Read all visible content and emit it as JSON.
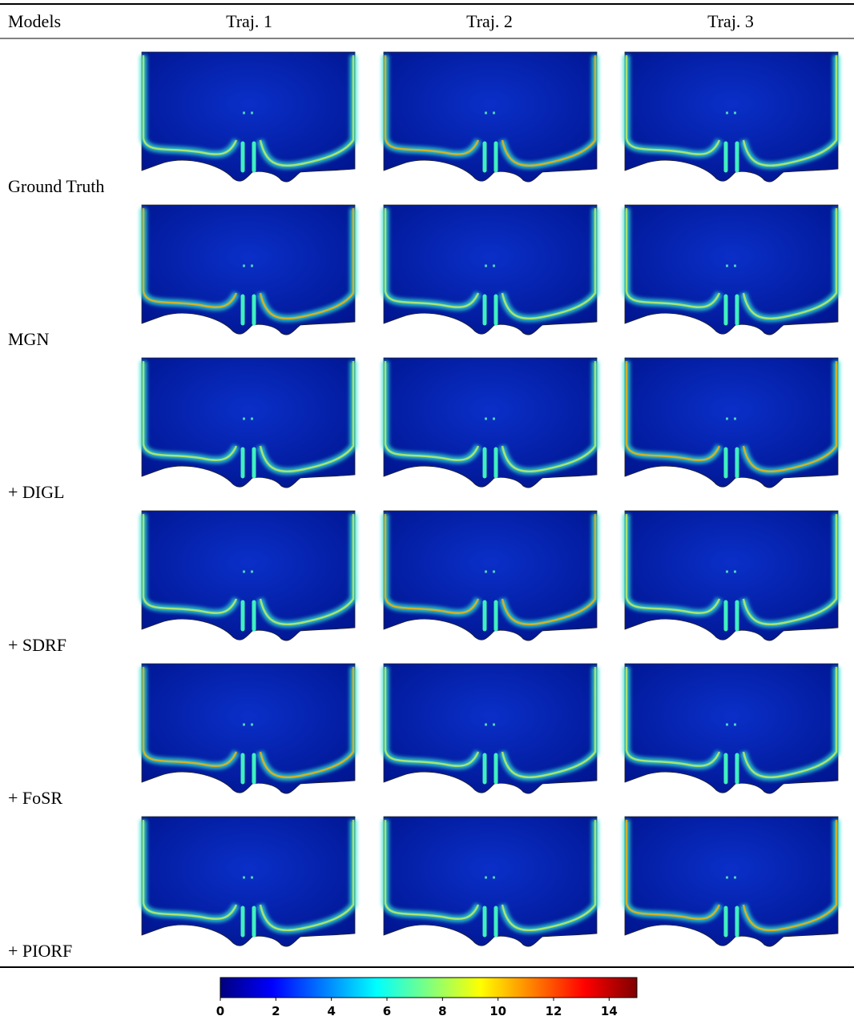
{
  "header": {
    "columns": [
      "Models",
      "Traj. 1",
      "Traj. 2",
      "Traj. 3"
    ]
  },
  "rows": [
    "Ground Truth",
    "MGN",
    "+ DIGL",
    "+ SDRF",
    "+ FoSR",
    "+ PIORF"
  ],
  "colorbar": {
    "range": [
      0,
      15
    ],
    "ticks": [
      0,
      2,
      4,
      6,
      8,
      10,
      12,
      14
    ],
    "colormap": [
      "#00007f",
      "#0000ff",
      "#007fff",
      "#00ffff",
      "#7fff7f",
      "#ffff00",
      "#ff7f00",
      "#ff0000",
      "#7f0000"
    ]
  }
}
